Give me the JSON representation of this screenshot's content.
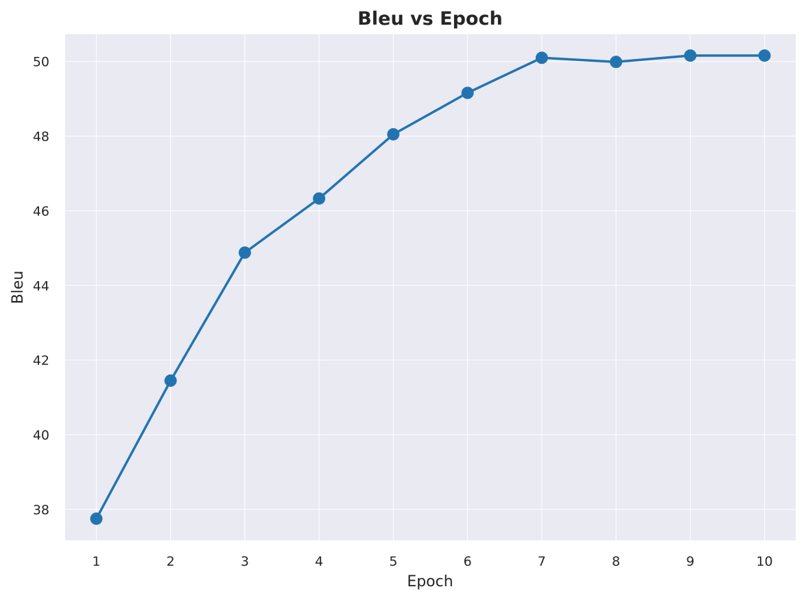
{
  "chart_data": {
    "type": "line",
    "title": "Bleu vs Epoch",
    "xlabel": "Epoch",
    "ylabel": "Bleu",
    "x": [
      1,
      2,
      3,
      4,
      5,
      6,
      7,
      8,
      9,
      10
    ],
    "series": [
      {
        "values": [
          37.75,
          41.45,
          44.88,
          46.33,
          48.05,
          49.16,
          50.1,
          49.99,
          50.16,
          50.16
        ]
      }
    ],
    "xticks": [
      1,
      2,
      3,
      4,
      5,
      6,
      7,
      8,
      9,
      10
    ],
    "yticks": [
      38,
      40,
      42,
      44,
      46,
      48,
      50
    ],
    "xlim": [
      0.58,
      10.42
    ],
    "ylim": [
      37.17,
      50.73
    ],
    "grid": true,
    "legend": "none",
    "colors": {
      "line": "#2274b0",
      "plot_background": "#e9eaf2",
      "grid": "#ffffff"
    }
  }
}
